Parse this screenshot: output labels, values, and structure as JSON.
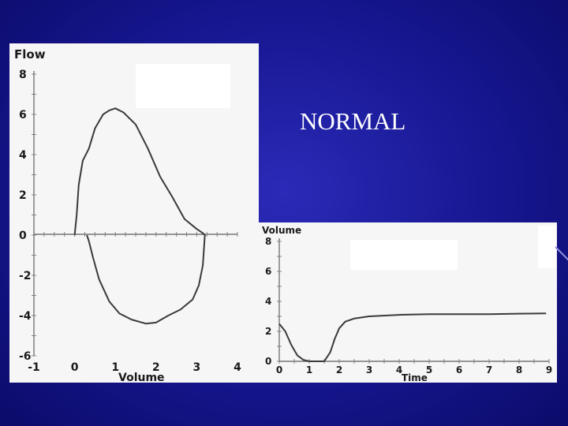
{
  "slide": {
    "title": "NORMAL"
  },
  "chart_data": [
    {
      "type": "line",
      "title": "",
      "ylabel": "Flow",
      "xlabel": "Volume",
      "xlim": [
        -1,
        4
      ],
      "ylim": [
        -6,
        8
      ],
      "x_ticks": [
        -1,
        0,
        1,
        2,
        3,
        4
      ],
      "y_ticks": [
        8,
        6,
        4,
        2,
        0,
        -2,
        -4,
        -6
      ],
      "grid": false,
      "series": [
        {
          "x": [
            0.0,
            0.05,
            0.1,
            0.2,
            0.35,
            0.5,
            0.7,
            0.85,
            1.0,
            1.2,
            1.5,
            1.8,
            2.1,
            2.4,
            2.7,
            3.0,
            3.15,
            3.2,
            3.15,
            3.05,
            2.9,
            2.6,
            2.3,
            2.0,
            1.75,
            1.4,
            1.1,
            0.85,
            0.6,
            0.45,
            0.35,
            0.3
          ],
          "y": [
            0.0,
            1.0,
            2.5,
            3.7,
            4.3,
            5.3,
            6.0,
            6.2,
            6.3,
            6.1,
            5.5,
            4.3,
            2.9,
            1.9,
            0.8,
            0.3,
            0.1,
            0.0,
            -1.5,
            -2.5,
            -3.2,
            -3.7,
            -4.0,
            -4.35,
            -4.4,
            -4.2,
            -3.9,
            -3.3,
            -2.2,
            -1.1,
            -0.3,
            0.0
          ]
        }
      ]
    },
    {
      "type": "line",
      "title": "",
      "ylabel": "Volume",
      "xlabel": "Time",
      "xlim": [
        0,
        9
      ],
      "ylim": [
        0,
        8
      ],
      "x_ticks": [
        0,
        1,
        2,
        3,
        4,
        5,
        6,
        7,
        8,
        9
      ],
      "y_ticks": [
        8,
        6,
        4,
        2,
        0
      ],
      "grid": false,
      "series": [
        {
          "x": [
            0.0,
            0.2,
            0.4,
            0.6,
            0.8,
            1.0,
            1.5,
            1.7,
            1.85,
            2.0,
            2.2,
            2.5,
            3.0,
            4.0,
            5.0,
            6.0,
            7.0,
            8.0,
            8.9
          ],
          "y": [
            2.5,
            2.0,
            1.1,
            0.4,
            0.1,
            0.0,
            0.0,
            0.6,
            1.5,
            2.2,
            2.65,
            2.85,
            3.0,
            3.1,
            3.15,
            3.15,
            3.15,
            3.18,
            3.2
          ]
        }
      ]
    }
  ]
}
